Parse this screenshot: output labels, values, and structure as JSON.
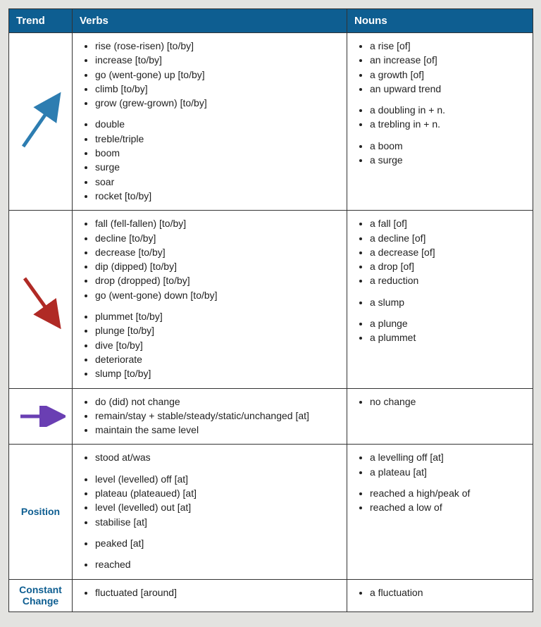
{
  "columns": [
    "Trend",
    "Verbs",
    "Nouns"
  ],
  "header_bg": "#0e5e91",
  "header_fg": "#ffffff",
  "border_color": "#333333",
  "background": "#e3e3e0",
  "arrow_colors": {
    "up": "#2d7db1",
    "down": "#b02a25",
    "flat": "#6a3fb3"
  },
  "rows": [
    {
      "trend_kind": "arrow-up",
      "trend_label": "",
      "verbs": [
        [
          "rise (rose-risen) [to/by]",
          "increase [to/by]",
          "go (went-gone) up [to/by]",
          "climb [to/by]",
          "grow (grew-grown) [to/by]"
        ],
        [
          "double",
          "treble/triple",
          "boom",
          "surge",
          "soar",
          "rocket [to/by]"
        ]
      ],
      "nouns": [
        [
          "a rise [of]",
          "an increase [of]",
          "a growth [of]",
          "an upward trend"
        ],
        [
          "a doubling in + n.",
          "a trebling in + n."
        ],
        [
          "a boom",
          "a surge"
        ]
      ]
    },
    {
      "trend_kind": "arrow-down",
      "trend_label": "",
      "verbs": [
        [
          "fall (fell-fallen) [to/by]",
          "decline [to/by]",
          "decrease [to/by]",
          "dip (dipped) [to/by]",
          "drop (dropped) [to/by]",
          "go (went-gone) down [to/by]"
        ],
        [
          "plummet [to/by]",
          "plunge [to/by]",
          "dive [to/by]",
          "deteriorate",
          "slump [to/by]"
        ]
      ],
      "nouns": [
        [
          "a fall [of]",
          "a decline [of]",
          "a decrease [of]",
          "a drop [of]",
          "a reduction"
        ],
        [
          "a slump"
        ],
        [
          "a plunge",
          "a plummet"
        ]
      ]
    },
    {
      "trend_kind": "arrow-flat",
      "trend_label": "",
      "verbs": [
        [
          "do (did) not change",
          "remain/stay + stable/steady/static/unchanged [at]",
          "maintain the same level"
        ]
      ],
      "nouns": [
        [
          "no change"
        ]
      ]
    },
    {
      "trend_kind": "text",
      "trend_label": "Position",
      "verbs": [
        [
          "stood at/was"
        ],
        [
          "level (levelled) off [at]",
          "plateau (plateaued) [at]",
          "level (levelled) out [at]",
          "stabilise [at]"
        ],
        [
          "peaked [at]"
        ],
        [
          "reached"
        ]
      ],
      "nouns": [
        [
          "a levelling off [at]",
          "a plateau [at]"
        ],
        [
          "reached a high/peak of",
          "reached a low of"
        ]
      ]
    },
    {
      "trend_kind": "text",
      "trend_label": "Constant Change",
      "verbs": [
        [
          "fluctuated [around]"
        ]
      ],
      "nouns": [
        [
          "a fluctuation"
        ]
      ]
    }
  ]
}
